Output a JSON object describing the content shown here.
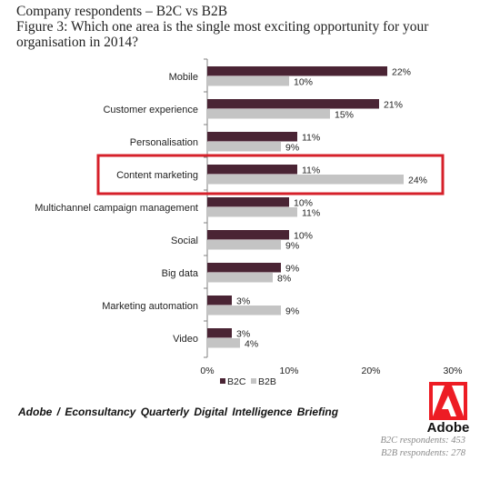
{
  "header": {
    "line1": "Company respondents – B2C vs B2B",
    "line2": "Figure 3: Which one area is the single most exciting opportunity for your",
    "line3": "organisation in 2014?"
  },
  "chart_data": {
    "type": "bar",
    "orientation": "horizontal",
    "categories": [
      "Mobile",
      "Customer experience",
      "Personalisation",
      "Content marketing",
      "Multichannel campaign management",
      "Social",
      "Big data",
      "Marketing automation",
      "Video"
    ],
    "series": [
      {
        "name": "B2C",
        "color": "#4a2434",
        "values": [
          22,
          21,
          11,
          11,
          10,
          10,
          9,
          3,
          3
        ],
        "labels": [
          "22%",
          "21%",
          "11%",
          "11%",
          "10%",
          "10%",
          "9%",
          "3%",
          "3%"
        ]
      },
      {
        "name": "B2B",
        "color": "#c4c4c4",
        "values": [
          10,
          15,
          9,
          24,
          11,
          9,
          8,
          9,
          4
        ],
        "labels": [
          "10%",
          "15%",
          "9%",
          "24%",
          "11%",
          "9%",
          "8%",
          "9%",
          "4%"
        ]
      }
    ],
    "xlim": [
      0,
      30
    ],
    "xticks": [
      0,
      10,
      20,
      30
    ],
    "xtick_labels": [
      "0%",
      "10%",
      "20%",
      "30%"
    ],
    "highlighted_category": "Content marketing",
    "highlight_color": "#d6202a",
    "legend_position": "bottom"
  },
  "footer": {
    "source": "Adobe / Econsultancy  Quarterly  Digital Intelligence  Briefing",
    "logo_text": "Adobe",
    "b2c_respondents": "B2C respondents: 453",
    "b2b_respondents": "B2B respondents: 278"
  }
}
